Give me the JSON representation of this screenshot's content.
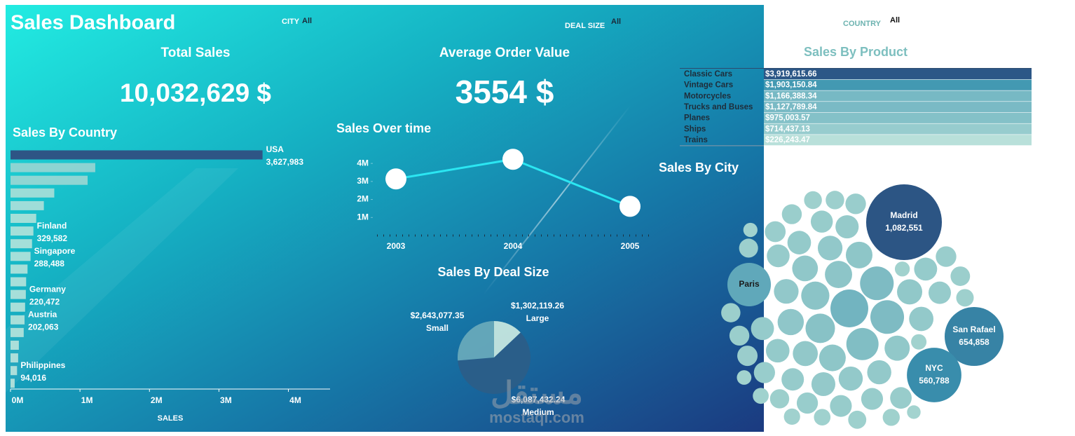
{
  "header": {
    "title": "Sales Dashboard",
    "filters": [
      {
        "label": "CITY",
        "value": "All"
      },
      {
        "label": "DEAL SIZE",
        "value": "All"
      },
      {
        "label": "COUNTRY",
        "value": "All"
      }
    ],
    "kpis": [
      {
        "label": "Total Sales",
        "value": "10,032,629 $"
      },
      {
        "label": "Average Order Value",
        "value": "3554 $"
      }
    ],
    "watermark": [
      "مستقل",
      "mostaql.com"
    ]
  },
  "chart_data": [
    {
      "type": "bar",
      "orientation": "horizontal",
      "title": "Sales By Country",
      "x_label": "SALES",
      "categories": [
        "USA",
        null,
        null,
        null,
        null,
        null,
        "Finland",
        null,
        "Singapore",
        null,
        null,
        "Germany",
        null,
        "Austria",
        null,
        null,
        null,
        "Philippines",
        null
      ],
      "values": [
        3627983,
        1220000,
        1110000,
        630000,
        480000,
        370000,
        329582,
        310000,
        288488,
        245000,
        225000,
        220472,
        210000,
        202063,
        190000,
        120000,
        110000,
        94016,
        60000
      ],
      "value_labels": [
        "3,627,983",
        null,
        null,
        null,
        null,
        null,
        "329,582",
        null,
        "288,488",
        null,
        null,
        "220,472",
        null,
        "202,063",
        null,
        null,
        null,
        "94,016",
        null
      ],
      "color_range": [
        "#c6eadf",
        "#8fcccc",
        "#2e5585"
      ],
      "xlim": [
        0,
        4600000
      ],
      "xticks": [
        {
          "value": 0,
          "label": "0M"
        },
        {
          "value": 1000000,
          "label": "1M"
        },
        {
          "value": 2000000,
          "label": "2M"
        },
        {
          "value": 3000000,
          "label": "3M"
        },
        {
          "value": 4000000,
          "label": "4M"
        }
      ]
    },
    {
      "type": "line",
      "title": "Sales Over time",
      "categories": [
        "2003",
        "2004",
        "2005"
      ],
      "values": [
        3140000,
        4230000,
        1620000
      ],
      "color": "#2be6f2",
      "marker_color": "#ffffff",
      "ylim": [
        0,
        4900000
      ],
      "yticks": [
        {
          "value": 1000000,
          "label": "1M"
        },
        {
          "value": 2000000,
          "label": "2M"
        },
        {
          "value": 3000000,
          "label": "3M"
        },
        {
          "value": 4000000,
          "label": "4M"
        }
      ]
    },
    {
      "type": "pie",
      "title": "Sales By Deal Size",
      "categories": [
        "Large",
        "Medium",
        "Small"
      ],
      "values": [
        1302119.26,
        6087432.24,
        2643077.35
      ],
      "value_labels": [
        "$1,302,119.26",
        "$6,087,432.24",
        "$2,643,077.35"
      ],
      "colors": [
        "#cbe9e1",
        "#2d5d88",
        "#6aaabb"
      ]
    },
    {
      "type": "highlight-table",
      "title": "Sales By Product",
      "categories": [
        "Classic Cars",
        "Vintage Cars",
        "Motorcycles",
        "Trucks and Buses",
        "Planes",
        "Ships",
        "Trains"
      ],
      "values": [
        3919615.66,
        1903150.84,
        1166388.34,
        1127789.84,
        975003.57,
        714437.13,
        226243.47
      ],
      "value_labels": [
        "$3,919,615.66",
        "$1,903,150.84",
        "$1,166,388.34",
        "$1,127,789.84",
        "$975,003.57",
        "$714,437.13",
        "$226,243.47"
      ],
      "color_range": [
        "#c9eadf",
        "#3f97b1",
        "#2c5787"
      ]
    },
    {
      "type": "packed-bubble",
      "title": "Sales By City",
      "categories": [
        "Madrid",
        "San Rafael",
        "NYC",
        "Paris",
        null,
        null,
        null,
        null,
        null,
        null,
        null,
        null,
        null,
        null,
        null,
        null,
        null,
        null,
        null,
        null,
        null,
        null,
        null,
        null,
        null,
        null,
        null,
        null,
        null,
        null,
        null,
        null,
        null,
        null,
        null,
        null,
        null,
        null,
        null,
        null,
        null,
        null,
        null,
        null,
        null,
        null,
        null,
        null,
        null,
        null,
        null,
        null,
        null,
        null,
        null,
        null,
        null,
        null,
        null,
        null,
        null
      ],
      "values": [
        1082551,
        654858,
        560788,
        357000,
        270000,
        214000,
        214000,
        196000,
        164000,
        150000,
        140000,
        134000,
        134000,
        130000,
        125000,
        120000,
        120000,
        118000,
        115000,
        115000,
        112000,
        110000,
        110000,
        108000,
        105000,
        105000,
        102000,
        100000,
        100000,
        98000,
        95000,
        95000,
        92000,
        90000,
        90000,
        88000,
        85000,
        85000,
        82000,
        80000,
        80000,
        78000,
        75000,
        75000,
        72000,
        70000,
        70000,
        68000,
        65000,
        62000,
        60000,
        58000,
        55000,
        52000,
        50000,
        48000,
        45000,
        42000,
        40000,
        38000,
        35000
      ],
      "value_labels": [
        "1,082,551",
        "654,858",
        "560,788",
        null,
        null,
        null,
        null,
        null,
        null,
        null,
        null,
        null,
        null,
        null,
        null,
        null,
        null,
        null,
        null,
        null,
        null,
        null,
        null,
        null,
        null,
        null,
        null,
        null,
        null,
        null,
        null,
        null,
        null,
        null,
        null,
        null,
        null,
        null,
        null,
        null,
        null,
        null,
        null,
        null,
        null,
        null,
        null,
        null,
        null,
        null,
        null,
        null,
        null,
        null,
        null,
        null,
        null,
        null,
        null,
        null,
        null
      ],
      "color_range": [
        "#aad8d1",
        "#3a8fae",
        "#2c5584"
      ]
    }
  ]
}
